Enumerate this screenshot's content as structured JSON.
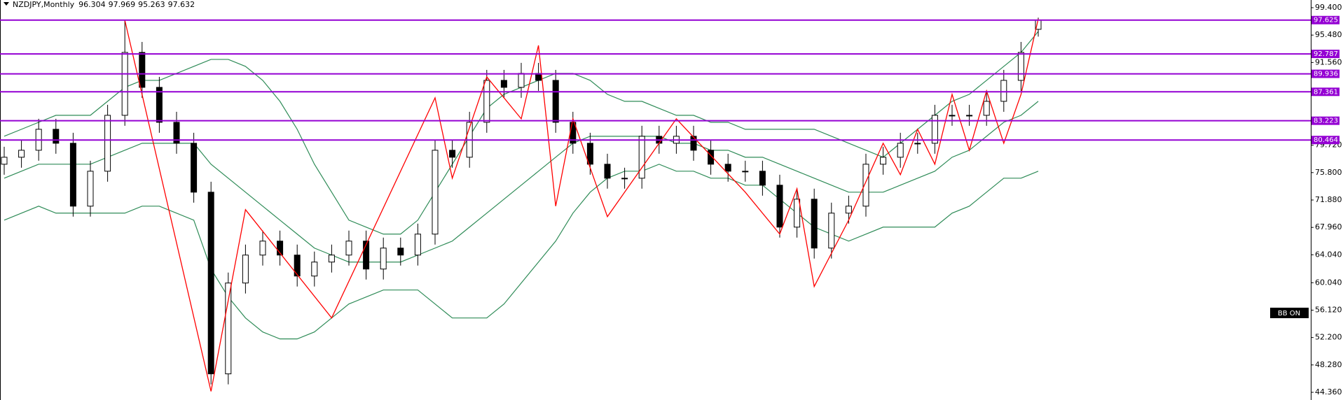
{
  "chart_data": {
    "type": "candlestick",
    "title": "NZDJPY,Monthly",
    "open": [
      77,
      78,
      79,
      82,
      80,
      71,
      76,
      84,
      93,
      88,
      83,
      80,
      73,
      47,
      60,
      64,
      66,
      64,
      61,
      63,
      64,
      66,
      62,
      65,
      64,
      67,
      79,
      78,
      83,
      89,
      88,
      90,
      89,
      83,
      80,
      77,
      75,
      75,
      81,
      80,
      81,
      79,
      77,
      76,
      76,
      74,
      68,
      72,
      65,
      70,
      71,
      77,
      78,
      80,
      80,
      84,
      84,
      84,
      86,
      89,
      96.304
    ],
    "high": [
      79.5,
      80.5,
      83.5,
      83.5,
      81.5,
      77.5,
      85.5,
      97.6,
      94.5,
      89.5,
      84.5,
      81.5,
      74.5,
      61.5,
      65.5,
      67.5,
      67.5,
      65.5,
      64.5,
      65.5,
      67.5,
      67.5,
      66.5,
      66.5,
      68.5,
      80.5,
      80.5,
      84.5,
      90.5,
      90.5,
      91.5,
      91.5,
      90.5,
      84.5,
      81.5,
      78.5,
      76.5,
      82.5,
      82.5,
      82.5,
      82.5,
      80.5,
      78.5,
      77.5,
      77.5,
      75.5,
      73.5,
      73.5,
      71.5,
      72.5,
      78.5,
      79.5,
      81.5,
      81.5,
      85.5,
      85.5,
      85.5,
      87.5,
      90.5,
      94.5,
      97.969
    ],
    "low": [
      75.5,
      76.5,
      77.5,
      78.5,
      69.5,
      69.5,
      74.5,
      82.5,
      86.5,
      81.5,
      78.5,
      71.5,
      45.5,
      45.5,
      58.5,
      62.5,
      62.5,
      59.5,
      59.5,
      61.5,
      62.5,
      60.5,
      60.5,
      62.5,
      62.5,
      65.5,
      76.5,
      76.5,
      81.5,
      86.5,
      86.5,
      87.5,
      81.5,
      78.5,
      75.5,
      73.5,
      73.5,
      73.5,
      78.5,
      78.5,
      77.5,
      75.5,
      74.5,
      74.5,
      72.5,
      66.5,
      66.5,
      63.5,
      63.5,
      68.5,
      69.5,
      75.5,
      76.5,
      78.5,
      78.5,
      82.5,
      82.5,
      82.5,
      84.5,
      87.5,
      95.263
    ],
    "close": [
      78,
      79,
      82,
      80,
      71,
      76,
      84,
      93,
      88,
      83,
      80,
      73,
      47,
      60,
      64,
      66,
      64,
      61,
      63,
      64,
      66,
      62,
      65,
      64,
      67,
      79,
      78,
      83,
      89,
      88,
      90,
      89,
      83,
      80,
      77,
      75,
      75,
      81,
      80,
      81,
      79,
      77,
      76,
      76,
      74,
      68,
      72,
      65,
      70,
      71,
      77,
      78,
      80,
      80,
      84,
      84,
      84,
      86,
      89,
      93,
      97.632
    ],
    "up_color": "#ffffff",
    "down_color": "#000000",
    "bollinger": {
      "color": "#2e8b57",
      "upper": [
        81,
        82,
        83,
        84,
        84,
        84,
        86,
        88,
        89,
        89,
        90,
        91,
        92,
        92,
        91,
        89,
        86,
        82,
        77,
        73,
        69,
        68,
        67,
        67,
        69,
        73,
        77,
        81,
        85,
        87,
        88,
        89,
        90,
        90,
        89,
        87,
        86,
        86,
        85,
        84,
        84,
        83,
        83,
        82,
        82,
        82,
        82,
        82,
        81,
        80,
        79,
        78,
        80,
        82,
        84,
        86,
        87,
        89,
        91,
        93,
        96
      ],
      "middle": [
        75,
        76,
        77,
        77,
        77,
        77,
        78,
        79,
        80,
        80,
        80,
        80,
        77,
        75,
        73,
        71,
        69,
        67,
        65,
        64,
        63,
        63,
        63,
        63,
        64,
        65,
        66,
        68,
        70,
        72,
        74,
        76,
        78,
        80,
        81,
        81,
        81,
        81,
        81,
        80,
        80,
        79,
        79,
        78,
        78,
        77,
        76,
        75,
        74,
        73,
        73,
        73,
        74,
        75,
        76,
        78,
        79,
        81,
        83,
        84,
        86
      ],
      "lower": [
        69,
        70,
        71,
        70,
        70,
        70,
        70,
        70,
        71,
        71,
        70,
        69,
        62,
        58,
        55,
        53,
        52,
        52,
        53,
        55,
        57,
        58,
        59,
        59,
        59,
        57,
        55,
        55,
        55,
        57,
        60,
        63,
        66,
        70,
        73,
        75,
        76,
        76,
        77,
        76,
        76,
        75,
        75,
        74,
        74,
        72,
        70,
        68,
        67,
        66,
        67,
        68,
        68,
        68,
        68,
        70,
        71,
        73,
        75,
        75,
        76
      ]
    },
    "zigzag": {
      "color": "#ff0000",
      "x": [
        7,
        12,
        14,
        19,
        25,
        26,
        28,
        30,
        31,
        32,
        33,
        35,
        39,
        43,
        45,
        46,
        47,
        49,
        51,
        52,
        53,
        54,
        55,
        56,
        57,
        58,
        59,
        60
      ],
      "values": [
        97.6,
        44.5,
        70.5,
        55,
        86.5,
        75,
        89.5,
        83.5,
        94,
        71,
        83.5,
        69.5,
        83.5,
        73,
        67,
        73.5,
        59.5,
        69,
        80,
        75.5,
        82,
        77,
        87,
        79,
        87.5,
        80,
        87,
        97.8
      ]
    },
    "levels": {
      "color": "#9400d3",
      "values": [
        97.625,
        92.787,
        89.936,
        87.361,
        83.223,
        80.464
      ]
    },
    "indicator_label": "BB ON",
    "ylim": [
      43.26,
      100.5
    ],
    "yticks": [
      {
        "value": 99.4,
        "label": "99.400"
      },
      {
        "value": 95.48,
        "label": "95.480"
      },
      {
        "value": 91.56,
        "label": "91.560"
      },
      {
        "value": 79.72,
        "label": "79.720"
      },
      {
        "value": 75.8,
        "label": "75.800"
      },
      {
        "value": 71.88,
        "label": "71.880"
      },
      {
        "value": 67.96,
        "label": "67.960"
      },
      {
        "value": 64.04,
        "label": "64.040"
      },
      {
        "value": 60.04,
        "label": "60.040"
      },
      {
        "value": 56.12,
        "label": "56.120"
      },
      {
        "value": 52.2,
        "label": "52.200"
      },
      {
        "value": 48.28,
        "label": "48.280"
      },
      {
        "value": 44.36,
        "label": "44.360"
      }
    ]
  }
}
